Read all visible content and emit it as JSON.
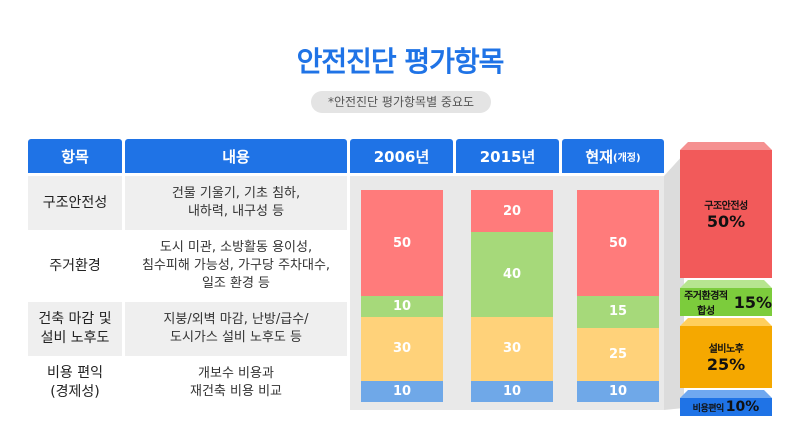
{
  "title": "안전진단 평가항목",
  "subtitle": "*안전진단 평가항목별 중요도",
  "headers": {
    "item": "항목",
    "content": "내용",
    "y2006": "2006년",
    "y2015": "2015년",
    "current_main": "현재",
    "current_sub": "(개정)"
  },
  "rows": [
    {
      "item": "구조안전성",
      "content_line1": "건물 기울기, 기초 침하,",
      "content_line2": "내하력, 내구성 등",
      "content_line3": ""
    },
    {
      "item": "주거환경",
      "content_line1": "도시 미관, 소방활동 용이성,",
      "content_line2": "침수피해 가능성, 가구당 주차대수,",
      "content_line3": "일조 환경 등"
    },
    {
      "item_line1": "건축 마감 및",
      "item_line2": "설비 노후도",
      "content_line1": "지붕/외벽 마감, 난방/급수/",
      "content_line2": "도시가스 설비 노후도 등"
    },
    {
      "item_line1": "비용 편익",
      "item_line2": "(경제성)",
      "content_line1": "개보수 비용과",
      "content_line2": "재건축 비용 비교"
    }
  ],
  "chart_data": {
    "type": "bar",
    "stacked": true,
    "categories": [
      "2006년",
      "2015년",
      "현재(개정)"
    ],
    "series": [
      {
        "name": "구조안전성",
        "color": "#ff7b7b",
        "values": [
          50,
          20,
          50
        ]
      },
      {
        "name": "주거환경",
        "color": "#a6d97a",
        "values": [
          10,
          40,
          15
        ]
      },
      {
        "name": "건축 마감 및 설비 노후도",
        "color": "#ffd27a",
        "values": [
          30,
          30,
          25
        ]
      },
      {
        "name": "비용 편익(경제성)",
        "color": "#6fa8e8",
        "values": [
          10,
          10,
          10
        ]
      }
    ],
    "value_labels": [
      "50",
      "10",
      "30",
      "10",
      "20",
      "40",
      "30",
      "10",
      "50",
      "15",
      "25",
      "10"
    ]
  },
  "summary": [
    {
      "label": "구조안전성",
      "pct": "50%",
      "color": "#f25a5a",
      "top": "#f59090"
    },
    {
      "label": "주거환경적합성",
      "pct": "15%",
      "color": "#7ccc3c",
      "top": "#b6e58f"
    },
    {
      "label": "설비노후",
      "pct": "25%",
      "color": "#f5a800",
      "top": "#ffcf5c"
    },
    {
      "label": "비용편익",
      "pct": "10%",
      "color": "#1f73e6",
      "top": "#6fa8f0"
    }
  ]
}
